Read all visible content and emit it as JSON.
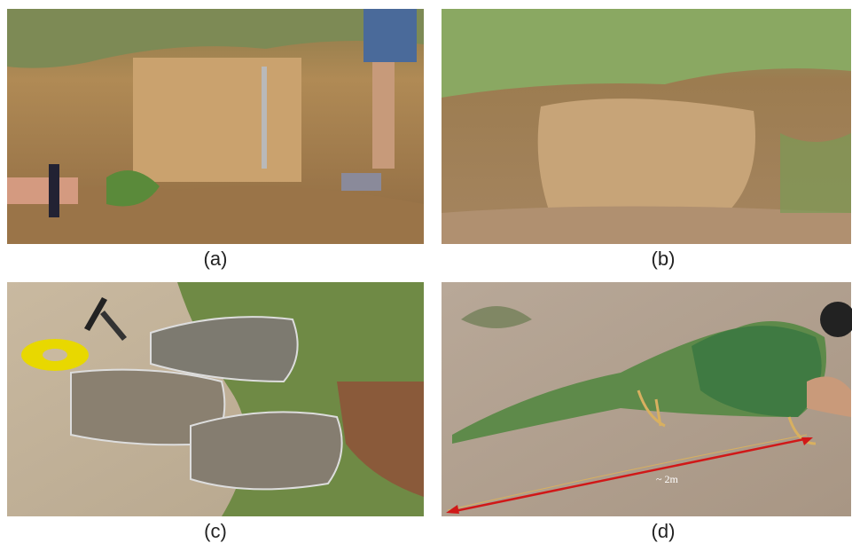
{
  "panels": [
    {
      "label": "(a)"
    },
    {
      "label": "(b)"
    },
    {
      "label": "(c)"
    },
    {
      "label": "(d)",
      "annotation": "~ 2m"
    }
  ]
}
